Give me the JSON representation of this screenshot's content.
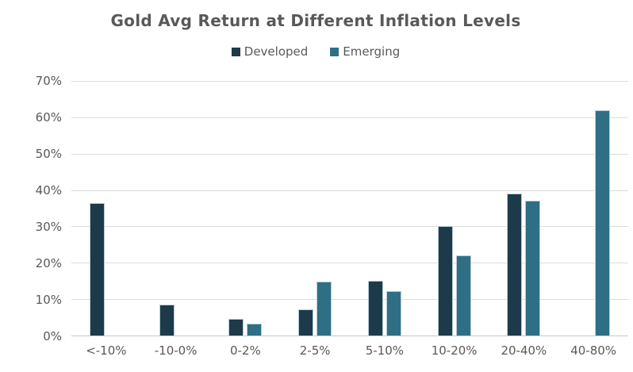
{
  "chart_data": {
    "type": "bar",
    "title": "Gold Avg Return at Different Inflation Levels",
    "categories": [
      "<-10%",
      "-10-0%",
      "0-2%",
      "2-5%",
      "5-10%",
      "10-20%",
      "20-40%",
      "40-80%"
    ],
    "series": [
      {
        "name": "Developed",
        "color": "#1d3a4a",
        "values": [
          36.5,
          8.5,
          4.5,
          7.2,
          15,
          30,
          39,
          null
        ]
      },
      {
        "name": "Emerging",
        "color": "#2e6f85",
        "values": [
          null,
          null,
          3.3,
          14.8,
          12.3,
          22,
          37,
          62
        ]
      }
    ],
    "xlabel": "",
    "ylabel": "",
    "ylim": [
      0,
      70
    ],
    "ytick_step": 10,
    "ytick_labels": [
      "70%",
      "60%",
      "50%",
      "40%",
      "30%",
      "20%",
      "10%",
      "0%"
    ],
    "grid": "horizontal",
    "gridline_color": "#dcdcdc",
    "axis_line_color": "#c6c6c6",
    "text_color": "#595959",
    "legend_position": "top",
    "bar_edge_color": "#b9cdd6",
    "background_color": "#ffffff"
  }
}
